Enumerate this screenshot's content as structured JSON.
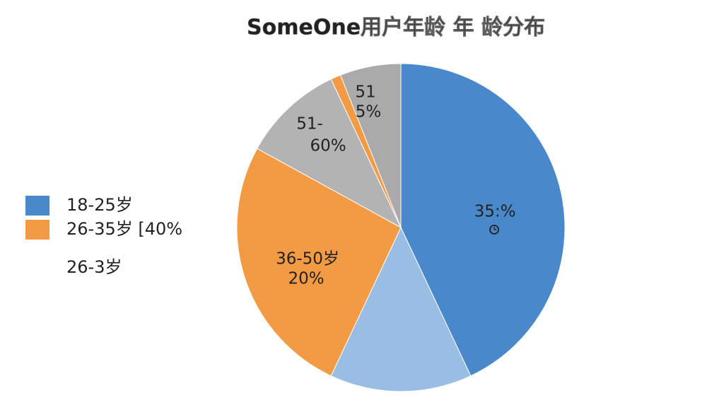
{
  "chart_data": {
    "type": "pie",
    "title": "SomeOne用户年龄 年 龄分布",
    "values": [
      43,
      14,
      26,
      10,
      1,
      6
    ],
    "colors": [
      "#4a88cc",
      "#9abde3",
      "#f39a45",
      "#b3b3b3",
      "#f39a45",
      "#aaaaaa"
    ],
    "legend": [
      {
        "label": "18-25岁",
        "color": "#4a88cc"
      },
      {
        "label": "26-35岁 [40%",
        "color": "#f39a45"
      },
      {
        "label": "26-3岁"
      }
    ],
    "annotations": [
      "35:%",
      "36-50岁",
      "20%",
      "51-",
      "60%",
      "51",
      "5%"
    ]
  }
}
